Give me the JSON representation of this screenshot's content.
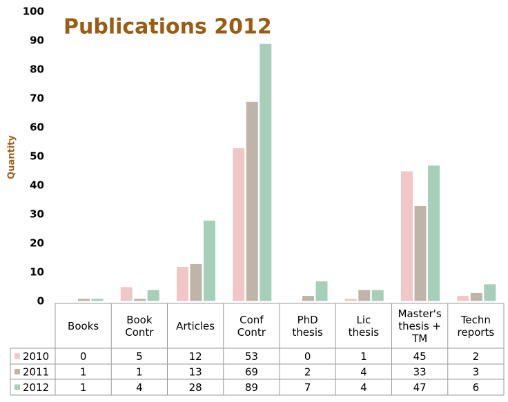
{
  "chart_data": {
    "type": "bar",
    "title": "Publications 2012",
    "y_label": "Quantity",
    "categories": [
      "Books",
      "Book Contr",
      "Articles",
      "Conf Contr",
      "PhD thesis",
      "Lic thesis",
      "Master's thesis + TM",
      "Techn reports"
    ],
    "series": [
      {
        "name": "2010",
        "color": "#f0c6c6",
        "values": [
          0,
          5,
          12,
          53,
          0,
          1,
          45,
          2
        ]
      },
      {
        "name": "2011",
        "color": "#beb4a8",
        "values": [
          1,
          1,
          13,
          69,
          2,
          4,
          33,
          3
        ]
      },
      {
        "name": "2012",
        "color": "#a6cfba",
        "values": [
          1,
          4,
          28,
          89,
          7,
          4,
          47,
          6
        ]
      }
    ],
    "ylim": [
      0,
      100
    ],
    "yticks": [
      0,
      10,
      20,
      30,
      40,
      50,
      60,
      70,
      80,
      90,
      100
    ],
    "grid": false,
    "data_table": true
  }
}
